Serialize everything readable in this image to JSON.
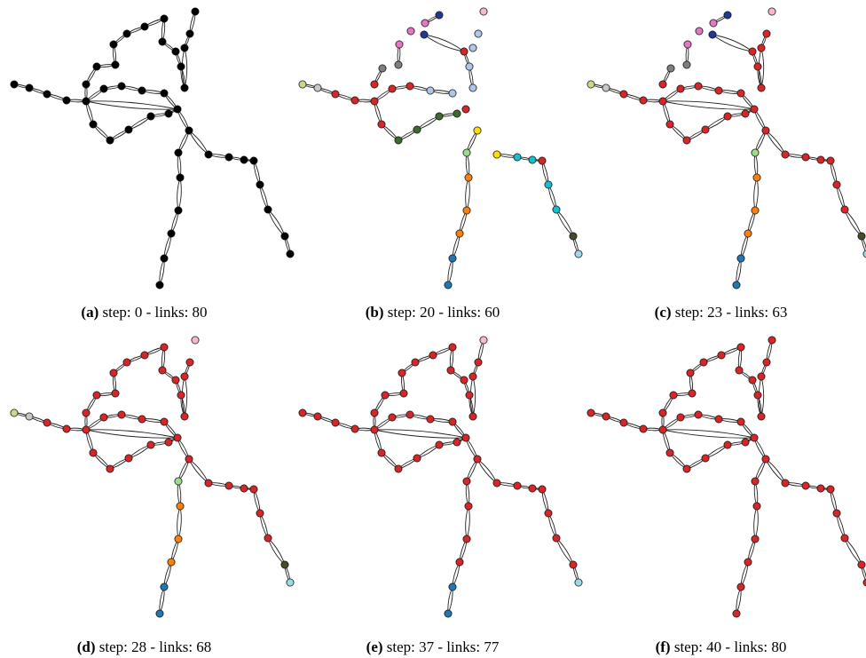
{
  "figure": {
    "panels": [
      {
        "letter": "(a)",
        "text": "step: 0 - links: 80"
      },
      {
        "letter": "(b)",
        "text": "step: 20 - links: 60"
      },
      {
        "letter": "(c)",
        "text": "step: 23 - links: 63"
      },
      {
        "letter": "(d)",
        "text": "step: 28 - links: 68"
      },
      {
        "letter": "(e)",
        "text": "step: 37 - links: 77"
      },
      {
        "letter": "(f)",
        "text": "step: 40 - links: 80"
      }
    ]
  },
  "colors": {
    "black": "#000000",
    "red": "#d62728",
    "pink": "#e377c2",
    "navy": "#1f3a93",
    "lightpink": "#f7b6d2",
    "lightblue": "#aec7e8",
    "olive": "#c9d98a",
    "gray": "#c7c7c7",
    "darkgray": "#7f7f7f",
    "green": "#3e6b2a",
    "gold": "#ffdd00",
    "lightgreen": "#98df8a",
    "orange": "#ff7f0e",
    "cyan": "#17becf",
    "brown": "#4a4a2a",
    "skyblue": "#9edae5",
    "blue": "#1f77b4"
  }
}
